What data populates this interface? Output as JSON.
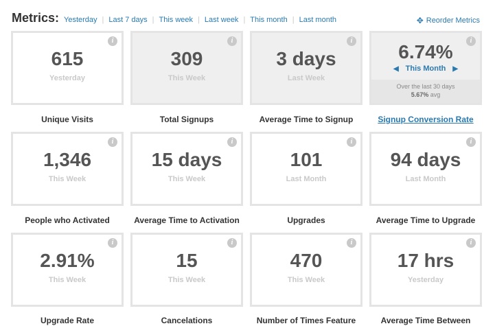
{
  "header": {
    "title": "Metrics:",
    "filters": [
      "Yesterday",
      "Last 7 days",
      "This week",
      "Last week",
      "This month",
      "Last month"
    ],
    "reorder_label": "Reorder Metrics",
    "reorder_icon": "move-arrows-icon"
  },
  "colors": {
    "accent": "#2a7ab0",
    "tile_border": "#e4e4e4",
    "tile_shaded": "#efefef"
  },
  "metrics": [
    {
      "value": "615",
      "period": "Yesterday",
      "label": "Unique Visits"
    },
    {
      "value": "309",
      "period": "This Week",
      "label": "Total Signups"
    },
    {
      "value": "3 days",
      "period": "Last Week",
      "label": "Average Time to Signup"
    },
    {
      "value": "6.74%",
      "period": "This Month",
      "label": "Signup Conversion Rate",
      "footer_text": "Over the last 30 days",
      "footer_avg_value": "5.67%",
      "footer_avg_label": "avg"
    },
    {
      "value": "1,346",
      "period": "This Week",
      "label": "People who Activated"
    },
    {
      "value": "15 days",
      "period": "This Week",
      "label": "Average Time to Activation"
    },
    {
      "value": "101",
      "period": "Last Month",
      "label": "Upgrades"
    },
    {
      "value": "94 days",
      "period": "Last Month",
      "label": "Average Time to Upgrade"
    },
    {
      "value": "2.91%",
      "period": "This Week",
      "label": "Upgrade Rate"
    },
    {
      "value": "15",
      "period": "This Week",
      "label": "Cancelations"
    },
    {
      "value": "470",
      "period": "This Week",
      "label": "Number of Times Feature"
    },
    {
      "value": "17 hrs",
      "period": "Yesterday",
      "label": "Average Time Between"
    }
  ]
}
